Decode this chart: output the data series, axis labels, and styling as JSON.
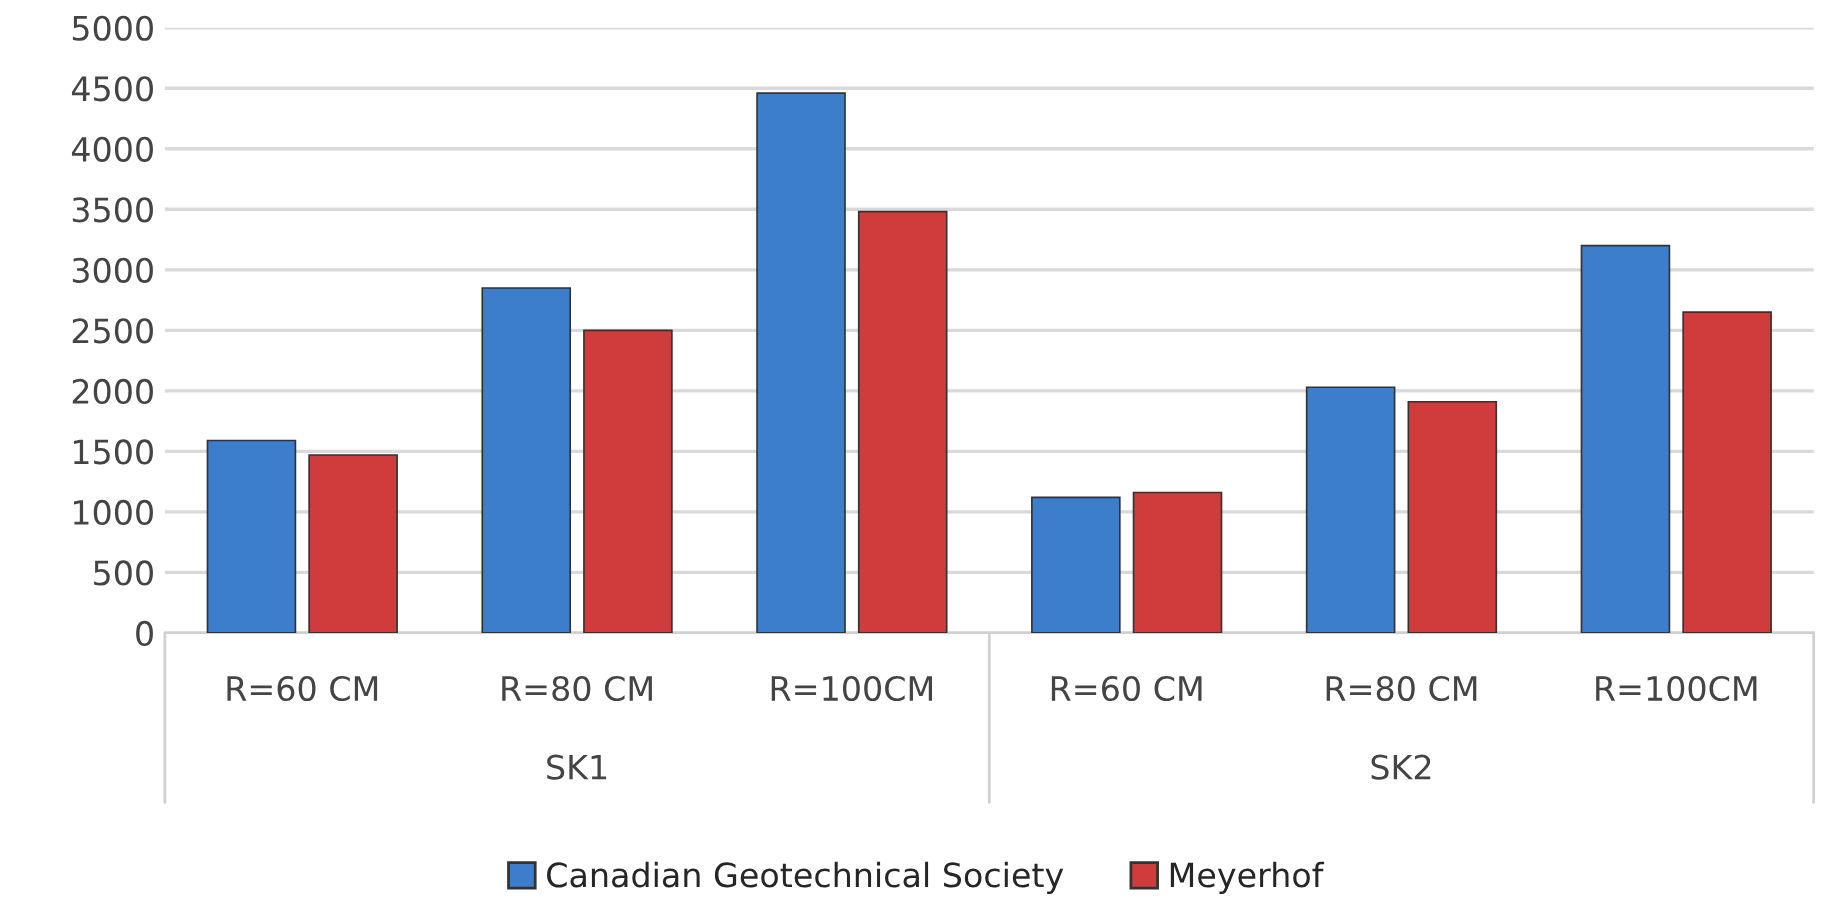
{
  "chart_data": {
    "type": "bar",
    "categories": [
      "R=60 CM",
      "R=80 CM",
      "R=100CM",
      "R=60 CM",
      "R=80 CM",
      "R=100CM"
    ],
    "series": [
      {
        "name": "Canadian Geotechnical Society",
        "color": "#3c7dcc",
        "values": [
          1590,
          2850,
          4460,
          1120,
          2030,
          3200
        ]
      },
      {
        "name": "Meyerhof",
        "color": "#d03b3b",
        "values": [
          1470,
          2500,
          3480,
          1160,
          1910,
          2650
        ]
      }
    ],
    "annotations": [
      "SK1",
      "SK2"
    ],
    "ylim": [
      0,
      5000
    ],
    "yticks": [
      0,
      500,
      1000,
      1500,
      2000,
      2500,
      3000,
      3500,
      4000,
      4500,
      5000
    ],
    "grid": "y",
    "legend": "bottom"
  }
}
